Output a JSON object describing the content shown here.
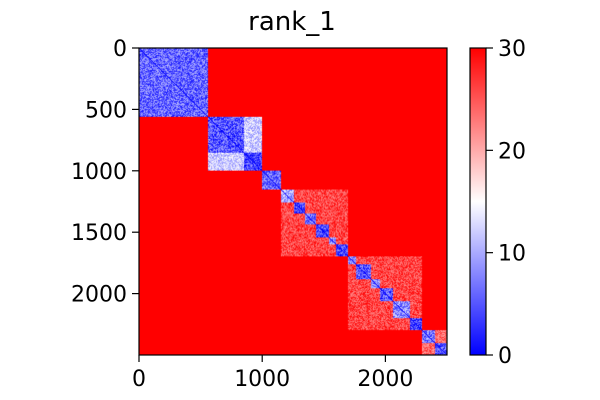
{
  "chart_data": {
    "type": "heatmap",
    "title": "rank_1",
    "xlabel": "",
    "ylabel": "",
    "matrix_size": 2500,
    "xlim": [
      0,
      2500
    ],
    "ylim": [
      2500,
      0
    ],
    "x_ticks": [
      0,
      1000,
      2000
    ],
    "y_ticks": [
      0,
      500,
      1000,
      1500,
      2000
    ],
    "x_tick_labels": [
      "0",
      "1000",
      "2000"
    ],
    "y_tick_labels": [
      "0",
      "500",
      "1000",
      "1500",
      "2000"
    ],
    "colorbar": {
      "colormap": "bwr",
      "vmin": 0,
      "vmax": 30,
      "ticks": [
        0,
        10,
        20,
        30
      ],
      "tick_labels": [
        "0",
        "10",
        "20",
        "30"
      ]
    },
    "background_level": 30,
    "diagonal_level": 0,
    "blocks": [
      {
        "start": 0,
        "end": 560,
        "level": 6
      },
      {
        "start": 560,
        "end": 850,
        "level": 5
      },
      {
        "start": 850,
        "end": 1000,
        "level": 4
      },
      {
        "start": 1000,
        "end": 1150,
        "level": 6
      },
      {
        "start": 1150,
        "end": 1260,
        "level": 10
      },
      {
        "start": 1260,
        "end": 1350,
        "level": 4
      },
      {
        "start": 1350,
        "end": 1440,
        "level": 6
      },
      {
        "start": 1440,
        "end": 1540,
        "level": 4
      },
      {
        "start": 1540,
        "end": 1600,
        "level": 8
      },
      {
        "start": 1600,
        "end": 1700,
        "level": 4
      },
      {
        "start": 1700,
        "end": 1760,
        "level": 8
      },
      {
        "start": 1760,
        "end": 1880,
        "level": 5
      },
      {
        "start": 1880,
        "end": 1960,
        "level": 8
      },
      {
        "start": 1960,
        "end": 2060,
        "level": 5
      },
      {
        "start": 2060,
        "end": 2200,
        "level": 8
      },
      {
        "start": 2200,
        "end": 2300,
        "level": 4
      },
      {
        "start": 2300,
        "end": 2400,
        "level": 7
      },
      {
        "start": 2400,
        "end": 2500,
        "level": 5
      }
    ],
    "off_diagonal_blocks": [
      {
        "rows": [
          560,
          1000
        ],
        "cols": [
          560,
          1000
        ],
        "level": 12
      },
      {
        "rows": [
          1150,
          1700
        ],
        "cols": [
          1150,
          1700
        ],
        "level": 26
      },
      {
        "rows": [
          1700,
          2300
        ],
        "cols": [
          1700,
          2300
        ],
        "level": 26
      },
      {
        "rows": [
          2300,
          2500
        ],
        "cols": [
          2300,
          2500
        ],
        "level": 24
      }
    ]
  }
}
